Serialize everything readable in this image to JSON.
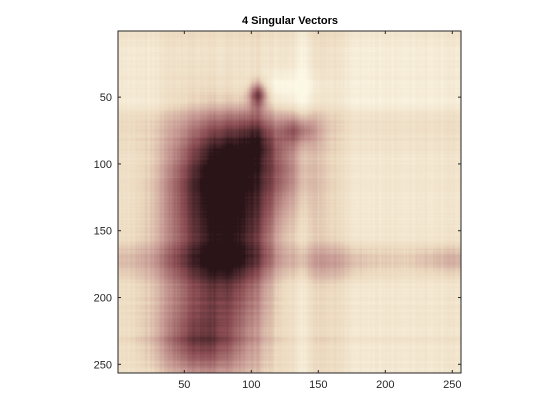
{
  "chart_data": {
    "type": "heatmap",
    "title": "4 Singular Vectors",
    "xlabel": "",
    "ylabel": "",
    "xlim": [
      0.5,
      256.5
    ],
    "ylim": [
      0.5,
      256.5
    ],
    "y_reversed": true,
    "grid": false,
    "x_ticks": [
      {
        "value": 50,
        "label": "50"
      },
      {
        "value": 100,
        "label": "100"
      },
      {
        "value": 150,
        "label": "150"
      },
      {
        "value": 200,
        "label": "200"
      },
      {
        "value": 250,
        "label": "250"
      }
    ],
    "y_ticks": [
      {
        "value": 50,
        "label": "50"
      },
      {
        "value": 100,
        "label": "100"
      },
      {
        "value": 150,
        "label": "150"
      },
      {
        "value": 200,
        "label": "200"
      },
      {
        "value": 250,
        "label": "250"
      }
    ],
    "colormap": [
      "#2a1418",
      "#8a4c52",
      "#c49590",
      "#ecd9bf",
      "#fcf8e6"
    ],
    "image_size": [
      256,
      256
    ],
    "background_level": 0.84,
    "column_bands": [
      {
        "start": 32,
        "end": 100,
        "level": -0.05
      },
      {
        "start": 100,
        "end": 108,
        "level": -0.08
      },
      {
        "start": 108,
        "end": 134,
        "level": -0.03
      },
      {
        "start": 134,
        "end": 142,
        "level": 0.1
      },
      {
        "start": 142,
        "end": 170,
        "level": -0.06
      },
      {
        "start": 175,
        "end": 245,
        "level": 0.03
      }
    ],
    "row_bands": [
      {
        "start": 10,
        "end": 45,
        "level": 0.04
      },
      {
        "start": 45,
        "end": 60,
        "level": 0.06
      },
      {
        "start": 60,
        "end": 90,
        "level": -0.05
      },
      {
        "start": 160,
        "end": 168,
        "level": -0.12
      },
      {
        "start": 168,
        "end": 178,
        "level": -0.16
      },
      {
        "start": 178,
        "end": 186,
        "level": -0.08
      },
      {
        "start": 230,
        "end": 234,
        "level": -0.06
      }
    ],
    "blobs": [
      {
        "x": 70,
        "y": 185,
        "sx": 28,
        "sy": 55,
        "level": -0.55
      },
      {
        "x": 60,
        "y": 110,
        "sx": 20,
        "sy": 30,
        "level": -0.35
      },
      {
        "x": 85,
        "y": 90,
        "sx": 18,
        "sy": 22,
        "level": -0.35
      },
      {
        "x": 90,
        "y": 140,
        "sx": 20,
        "sy": 40,
        "level": -0.3
      },
      {
        "x": 115,
        "y": 120,
        "sx": 22,
        "sy": 30,
        "level": -0.25
      },
      {
        "x": 105,
        "y": 80,
        "sx": 9,
        "sy": 14,
        "level": -0.25
      },
      {
        "x": 105,
        "y": 48,
        "sx": 5,
        "sy": 7,
        "level": -0.6
      },
      {
        "x": 135,
        "y": 75,
        "sx": 10,
        "sy": 8,
        "level": -0.35
      },
      {
        "x": 125,
        "y": 100,
        "sx": 14,
        "sy": 20,
        "level": -0.2
      },
      {
        "x": 60,
        "y": 235,
        "sx": 22,
        "sy": 15,
        "level": -0.25
      },
      {
        "x": 160,
        "y": 175,
        "sx": 20,
        "sy": 10,
        "level": -0.1
      },
      {
        "x": 250,
        "y": 172,
        "sx": 16,
        "sy": 7,
        "level": -0.1
      },
      {
        "x": 122,
        "y": 42,
        "sx": 22,
        "sy": 8,
        "level": 0.15
      },
      {
        "x": 125,
        "y": 155,
        "sx": 7,
        "sy": 55,
        "level": 0.12
      }
    ]
  }
}
